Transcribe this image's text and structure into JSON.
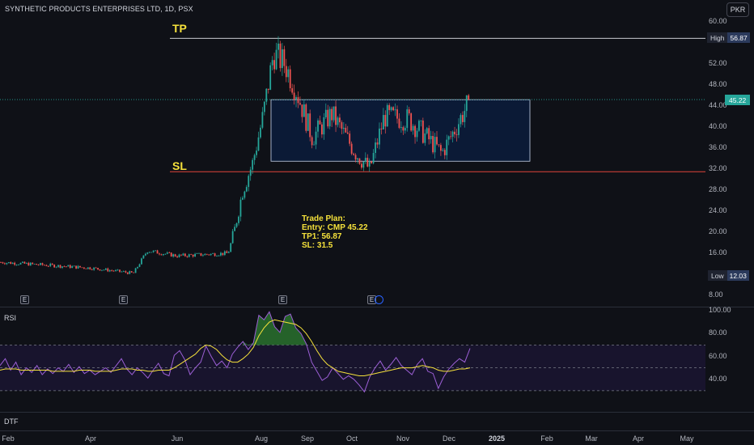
{
  "header": {
    "title": "SYNTHETIC PRODUCTS ENTERPRISES LTD, 1D, PSX",
    "currency": "PKR"
  },
  "annotations": {
    "tp_label": "TP",
    "sl_label": "SL",
    "trade_plan": [
      "Trade Plan:",
      "",
      "Entry: CMP 45.22",
      "TP1: 56.87",
      "SL: 31.5"
    ]
  },
  "tags": {
    "high_key": "High",
    "high_val": "56.87",
    "last_val": "45.22",
    "low_key": "Low",
    "low_val": "12.03"
  },
  "earnings_marker": "E",
  "colors": {
    "up": "#26a69a",
    "down": "#ef5350",
    "rsi": "#9c5fd6",
    "rsi_ma": "#f5e13b",
    "box_fill": "#0b1a36",
    "box_border": "#c7d2ea",
    "sl_line": "#e0443a",
    "tp_line": "#c7c9cf",
    "last_price_bg": "#26a69a",
    "low_bg": "#2b3a5c",
    "high_bg": "#2b3a5c"
  },
  "panes": {
    "rsi_title": "RSI",
    "dtf_title": "DTF"
  },
  "chart_data": [
    {
      "type": "candlestick",
      "title": "SYNTHETIC PRODUCTS ENTERPRISES LTD, 1D, PSX",
      "y_ticks": [
        "60.00",
        "52.00",
        "48.00",
        "44.00",
        "40.00",
        "36.00",
        "32.00",
        "28.00",
        "24.00",
        "20.00",
        "16.00",
        "8.00"
      ],
      "ylim": [
        8,
        60
      ],
      "x_ticks": [
        "Feb",
        "Apr",
        "Jun",
        "Aug",
        "Sep",
        "Oct",
        "Nov",
        "Dec",
        "2025",
        "Feb",
        "Mar",
        "Apr",
        "May"
      ],
      "levels": {
        "tp": 56.87,
        "sl": 31.5,
        "last": 45.22,
        "high": 56.87,
        "low": 12.03
      },
      "consolidation_box": {
        "x_start": "Aug",
        "x_end": "2025",
        "y_bottom": 33.5,
        "y_top": 45.2
      },
      "path_anchors": [
        {
          "x": "Feb",
          "close": 14.3
        },
        {
          "x": "Apr",
          "close": 13.2
        },
        {
          "x": "mid-May",
          "close": 12.2
        },
        {
          "x": "late-May",
          "close": 16.5
        },
        {
          "x": "Jun",
          "close": 15.5
        },
        {
          "x": "late-Jun",
          "close": 16.0
        },
        {
          "x": "early-Jul",
          "close": 20.5
        },
        {
          "x": "mid-Jul",
          "close": 28.0
        },
        {
          "x": "late-Jul",
          "close": 33.0
        },
        {
          "x": "Aug",
          "close": 42.0
        },
        {
          "x": "early-Aug",
          "close": 54.0
        },
        {
          "x": "mid-Aug",
          "close": 52.0
        },
        {
          "x": "late-Aug",
          "close": 47.0
        },
        {
          "x": "Sep",
          "close": 38.0
        },
        {
          "x": "mid-Sep",
          "close": 42.5
        },
        {
          "x": "Oct",
          "close": 35.0
        },
        {
          "x": "early-Oct",
          "close": 32.0
        },
        {
          "x": "mid-Oct",
          "close": 42.0
        },
        {
          "x": "Nov",
          "close": 41.5
        },
        {
          "x": "mid-Nov",
          "close": 38.5
        },
        {
          "x": "late-Nov",
          "close": 35.0
        },
        {
          "x": "Dec",
          "close": 39.5
        },
        {
          "x": "mid-Dec",
          "close": 45.22
        }
      ],
      "earnings_x": [
        "Feb",
        "Apr",
        "Aug",
        "Oct"
      ]
    },
    {
      "type": "line",
      "title": "RSI",
      "y_ticks": [
        "100.00",
        "80.00",
        "60.00",
        "40.00"
      ],
      "ylim": [
        20,
        100
      ],
      "bands": [
        30,
        50,
        70
      ],
      "series": [
        {
          "values": [
            52,
            58,
            48,
            55,
            44,
            50,
            46,
            52,
            44,
            49,
            45,
            50,
            47,
            53,
            46,
            51,
            45,
            48,
            44,
            47,
            50,
            46,
            52,
            58,
            49,
            44,
            50,
            46,
            41,
            48,
            54,
            45,
            43,
            61,
            65,
            57,
            44,
            50,
            55,
            69,
            60,
            52,
            56,
            50,
            62,
            68,
            73,
            66,
            72,
            96,
            92,
            99,
            86,
            81,
            95,
            97,
            85,
            80,
            71,
            55,
            47,
            39,
            42,
            50,
            45,
            40,
            43,
            40,
            35,
            29,
            42,
            50,
            56,
            48,
            53,
            59,
            52,
            48,
            44,
            53,
            58,
            47,
            45,
            32,
            42,
            49,
            54,
            58,
            55,
            67
          ]
        },
        {
          "values": [
            48,
            49,
            49,
            49,
            48,
            48,
            48,
            48,
            48,
            48,
            47,
            47,
            47,
            47,
            47,
            48,
            48,
            48,
            47,
            47,
            47,
            47,
            48,
            49,
            49,
            49,
            48,
            48,
            47,
            47,
            48,
            48,
            48,
            50,
            53,
            56,
            59,
            62,
            67,
            70,
            69,
            66,
            61,
            57,
            55,
            55,
            58,
            62,
            68,
            78,
            85,
            90,
            92,
            91,
            90,
            89,
            88,
            85,
            80,
            73,
            65,
            58,
            53,
            50,
            47,
            46,
            45,
            44,
            43,
            43,
            44,
            45,
            46,
            47,
            48,
            49,
            50,
            50,
            50,
            51,
            52,
            51,
            50,
            48,
            47,
            47,
            48,
            49,
            49,
            50
          ]
        }
      ]
    }
  ]
}
